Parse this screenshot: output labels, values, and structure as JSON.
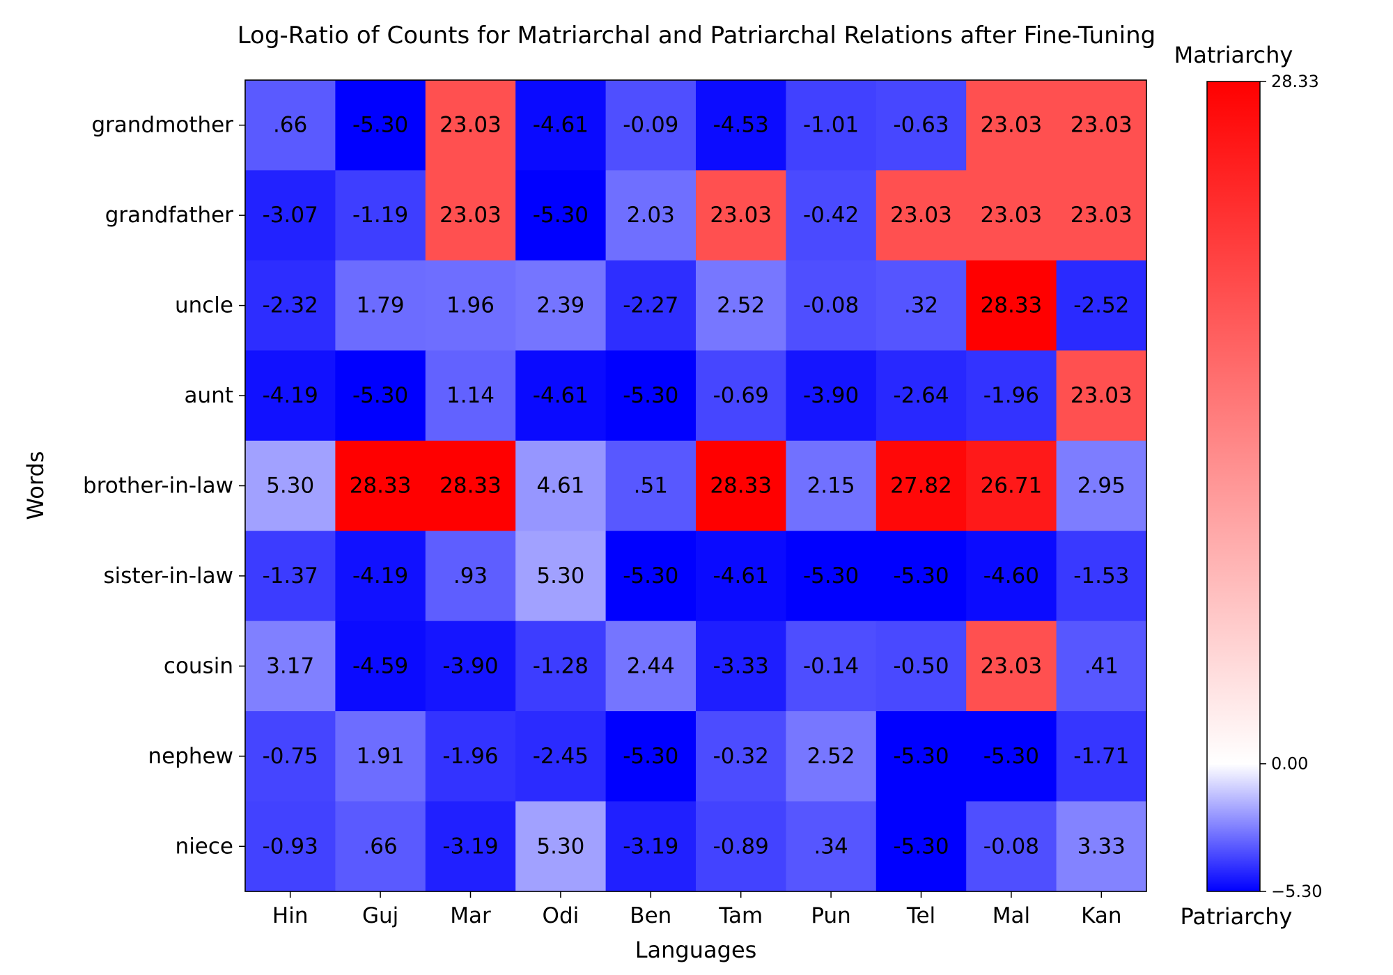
{
  "chart_data": {
    "type": "heatmap",
    "title": "Log-Ratio of Counts for Matriarchal and Patriarchal Relations after Fine-Tuning",
    "xlabel": "Languages",
    "ylabel": "Words",
    "columns": [
      "Hin",
      "Guj",
      "Mar",
      "Odi",
      "Ben",
      "Tam",
      "Pun",
      "Tel",
      "Mal",
      "Kan"
    ],
    "rows": [
      "grandmother",
      "grandfather",
      "uncle",
      "aunt",
      "brother-in-law",
      "sister-in-law",
      "cousin",
      "nephew",
      "niece"
    ],
    "values": [
      [
        0.66,
        -5.3,
        23.03,
        -4.61,
        -0.09,
        -4.53,
        -1.01,
        -0.63,
        23.03,
        23.03
      ],
      [
        -3.07,
        -1.19,
        23.03,
        -5.3,
        2.03,
        23.03,
        -0.42,
        23.03,
        23.03,
        23.03
      ],
      [
        -2.32,
        1.79,
        1.96,
        2.39,
        -2.27,
        2.52,
        -0.08,
        0.32,
        28.33,
        -2.52
      ],
      [
        -4.19,
        -5.3,
        1.14,
        -4.61,
        -5.3,
        -0.69,
        -3.9,
        -2.64,
        -1.96,
        23.03
      ],
      [
        5.3,
        28.33,
        28.33,
        4.61,
        0.51,
        28.33,
        2.15,
        27.82,
        26.71,
        2.95
      ],
      [
        -1.37,
        -4.19,
        0.93,
        5.3,
        -5.3,
        -4.61,
        -5.3,
        -5.3,
        -4.6,
        -1.53
      ],
      [
        3.17,
        -4.59,
        -3.9,
        -1.28,
        2.44,
        -3.33,
        -0.14,
        -0.5,
        23.03,
        0.41
      ],
      [
        -0.75,
        1.91,
        -1.96,
        -2.45,
        -5.3,
        -0.32,
        2.52,
        -5.3,
        -5.3,
        -1.71
      ],
      [
        -0.93,
        0.66,
        -3.19,
        5.3,
        -3.19,
        -0.89,
        0.34,
        -5.3,
        -0.08,
        3.33
      ]
    ],
    "cell_labels": [
      [
        ".66",
        "-5.30",
        "23.03",
        "-4.61",
        "-0.09",
        "-4.53",
        "-1.01",
        "-0.63",
        "23.03",
        "23.03"
      ],
      [
        "-3.07",
        "-1.19",
        "23.03",
        "-5.30",
        "2.03",
        "23.03",
        "-0.42",
        "23.03",
        "23.03",
        "23.03"
      ],
      [
        "-2.32",
        "1.79",
        "1.96",
        "2.39",
        "-2.27",
        "2.52",
        "-0.08",
        ".32",
        "28.33",
        "-2.52"
      ],
      [
        "-4.19",
        "-5.30",
        "1.14",
        "-4.61",
        "-5.30",
        "-0.69",
        "-3.90",
        "-2.64",
        "-1.96",
        "23.03"
      ],
      [
        "5.30",
        "28.33",
        "28.33",
        "4.61",
        ".51",
        "28.33",
        "2.15",
        "27.82",
        "26.71",
        "2.95"
      ],
      [
        "-1.37",
        "-4.19",
        ".93",
        "5.30",
        "-5.30",
        "-4.61",
        "-5.30",
        "-5.30",
        "-4.60",
        "-1.53"
      ],
      [
        "3.17",
        "-4.59",
        "-3.90",
        "-1.28",
        "2.44",
        "-3.33",
        "-0.14",
        "-0.50",
        "23.03",
        ".41"
      ],
      [
        "-0.75",
        "1.91",
        "-1.96",
        "-2.45",
        "-5.30",
        "-0.32",
        "2.52",
        "-5.30",
        "-5.30",
        "-1.71"
      ],
      [
        "-0.93",
        ".66",
        "-3.19",
        "5.30",
        "-3.19",
        "-0.89",
        ".34",
        "-5.30",
        "-0.08",
        "3.33"
      ]
    ],
    "colormap": [
      "#0000ff",
      "#ffffff",
      "#ff0000"
    ],
    "vmin": -5.3,
    "vmax": 28.33,
    "colorbar": {
      "ticks": [
        -5.3,
        0.0,
        28.33
      ],
      "tick_labels": [
        "−5.30",
        "0.00",
        "28.33"
      ],
      "top_label": "Matriarchy",
      "bottom_label": "Patriarchy"
    }
  }
}
